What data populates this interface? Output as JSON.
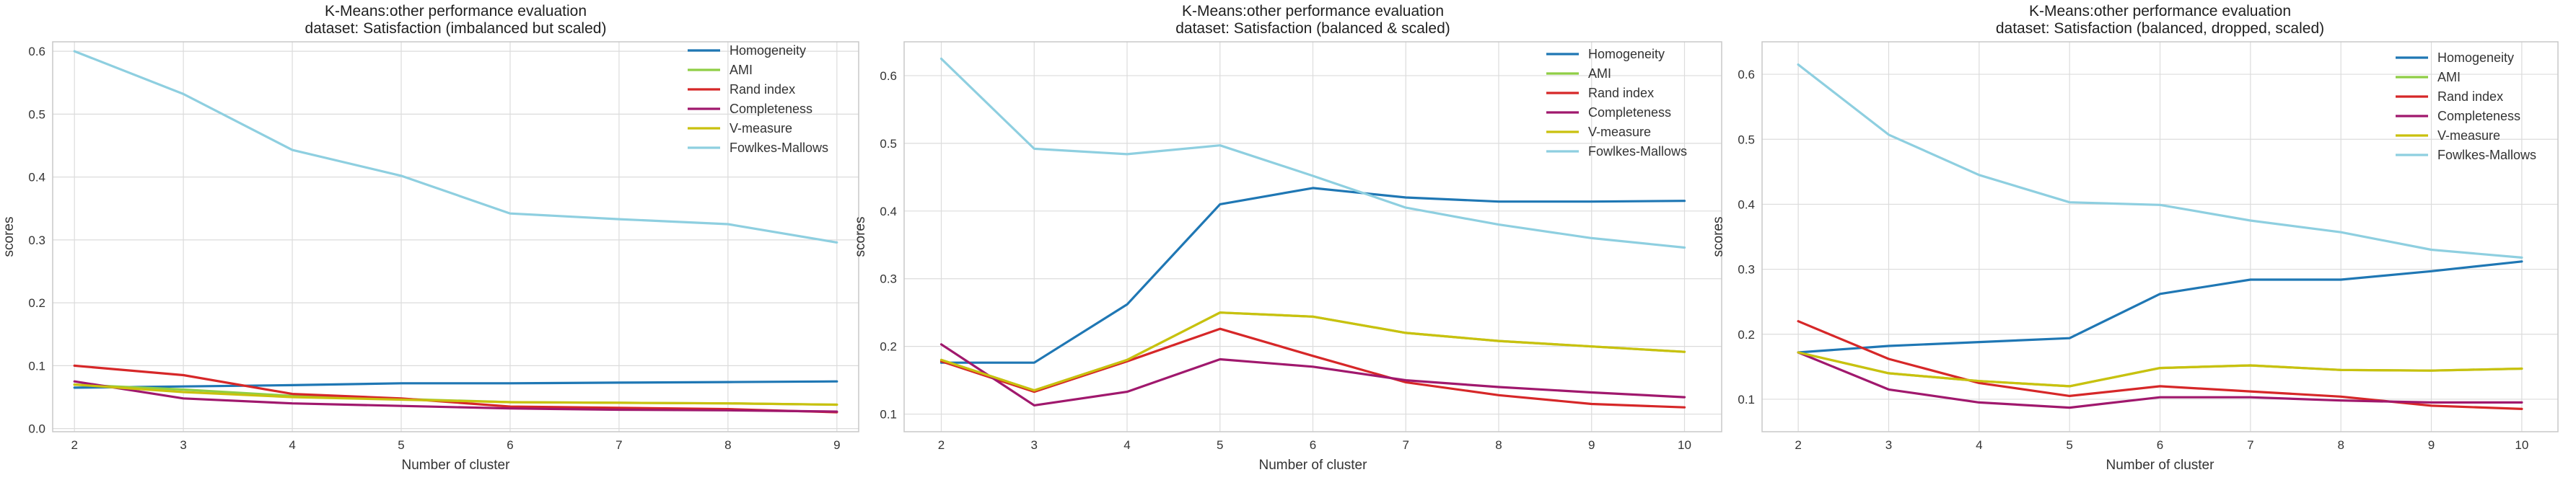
{
  "chart_data": [
    {
      "type": "line",
      "title": "K-Means:other performance evaluation",
      "subtitle": "dataset: Satisfaction (imbalanced but scaled)",
      "xlabel": "Number of cluster",
      "ylabel": "scores",
      "xlim": [
        1.8,
        9.2
      ],
      "ylim": [
        -0.005,
        0.615
      ],
      "x": [
        2,
        3,
        4,
        5,
        6,
        7,
        8,
        9
      ],
      "xticks": [
        "2",
        "3",
        "4",
        "5",
        "6",
        "7",
        "8",
        "9"
      ],
      "yticks": [
        "0.0",
        "0.1",
        "0.2",
        "0.3",
        "0.4",
        "0.5",
        "0.6"
      ],
      "ytick_values": [
        0.0,
        0.1,
        0.2,
        0.3,
        0.4,
        0.5,
        0.6
      ],
      "grid": true,
      "legend_position": "top-right",
      "series": [
        {
          "name": "Homogeneity",
          "color": "#1f77b4",
          "values": [
            0.065,
            0.067,
            0.069,
            0.072,
            0.072,
            0.073,
            0.074,
            0.075
          ]
        },
        {
          "name": "AMI",
          "color": "#8fce45",
          "values": [
            0.07,
            0.062,
            0.052,
            0.047,
            0.042,
            0.041,
            0.04,
            0.038
          ]
        },
        {
          "name": "Rand index",
          "color": "#d62728",
          "values": [
            0.1,
            0.085,
            0.055,
            0.048,
            0.035,
            0.033,
            0.031,
            0.026
          ]
        },
        {
          "name": "Completeness",
          "color": "#a0186d",
          "values": [
            0.075,
            0.048,
            0.04,
            0.036,
            0.032,
            0.03,
            0.029,
            0.027
          ]
        },
        {
          "name": "V-measure",
          "color": "#c9c10e",
          "values": [
            0.07,
            0.058,
            0.05,
            0.046,
            0.042,
            0.041,
            0.04,
            0.038
          ]
        },
        {
          "name": "Fowlkes-Mallows",
          "color": "#8ecfe0",
          "values": [
            0.6,
            0.532,
            0.443,
            0.402,
            0.342,
            0.333,
            0.325,
            0.296
          ]
        }
      ]
    },
    {
      "type": "line",
      "title": "K-Means:other performance evaluation",
      "subtitle": "dataset: Satisfaction (balanced & scaled)",
      "xlabel": "Number of cluster",
      "ylabel": "scores",
      "xlim": [
        1.6,
        10.4
      ],
      "ylim": [
        0.074,
        0.65
      ],
      "x": [
        2,
        3,
        4,
        5,
        6,
        7,
        8,
        9,
        10
      ],
      "xticks": [
        "2",
        "3",
        "4",
        "5",
        "6",
        "7",
        "8",
        "9",
        "10"
      ],
      "yticks": [
        "0.1",
        "0.2",
        "0.3",
        "0.4",
        "0.5",
        "0.6"
      ],
      "ytick_values": [
        0.1,
        0.2,
        0.3,
        0.4,
        0.5,
        0.6
      ],
      "grid": true,
      "legend_position": "top-right",
      "series": [
        {
          "name": "Homogeneity",
          "color": "#1f77b4",
          "values": [
            0.176,
            0.176,
            0.262,
            0.41,
            0.434,
            0.42,
            0.414,
            0.414,
            0.415
          ]
        },
        {
          "name": "AMI",
          "color": "#8fce45",
          "values": [
            0.18,
            0.135,
            0.18,
            0.25,
            0.244,
            0.22,
            0.208,
            0.2,
            0.192
          ]
        },
        {
          "name": "Rand index",
          "color": "#d62728",
          "values": [
            0.178,
            0.133,
            0.178,
            0.226,
            0.186,
            0.147,
            0.128,
            0.115,
            0.11
          ]
        },
        {
          "name": "Completeness",
          "color": "#a0186d",
          "values": [
            0.203,
            0.113,
            0.133,
            0.181,
            0.17,
            0.15,
            0.14,
            0.132,
            0.125
          ]
        },
        {
          "name": "V-measure",
          "color": "#c9c10e",
          "values": [
            0.18,
            0.135,
            0.18,
            0.25,
            0.244,
            0.22,
            0.208,
            0.2,
            0.192
          ]
        },
        {
          "name": "Fowlkes-Mallows",
          "color": "#8ecfe0",
          "values": [
            0.625,
            0.492,
            0.484,
            0.497,
            0.452,
            0.405,
            0.38,
            0.36,
            0.346
          ]
        }
      ]
    },
    {
      "type": "line",
      "title": "K-Means:other performance evaluation",
      "subtitle": "dataset: Satisfaction (balanced, dropped, scaled)",
      "xlabel": "Number of cluster",
      "ylabel": "scores",
      "xlim": [
        1.6,
        10.4
      ],
      "ylim": [
        0.05,
        0.65
      ],
      "x": [
        2,
        3,
        4,
        5,
        6,
        7,
        8,
        9,
        10
      ],
      "xticks": [
        "2",
        "3",
        "4",
        "5",
        "6",
        "7",
        "8",
        "9",
        "10"
      ],
      "yticks": [
        "0.1",
        "0.2",
        "0.3",
        "0.4",
        "0.5",
        "0.6"
      ],
      "ytick_values": [
        0.1,
        0.2,
        0.3,
        0.4,
        0.5,
        0.6
      ],
      "grid": true,
      "legend_position": "top-right",
      "series": [
        {
          "name": "Homogeneity",
          "color": "#1f77b4",
          "values": [
            0.172,
            0.182,
            0.188,
            0.194,
            0.262,
            0.284,
            0.284,
            0.297,
            0.312
          ]
        },
        {
          "name": "AMI",
          "color": "#8fce45",
          "values": [
            0.172,
            0.14,
            0.128,
            0.12,
            0.148,
            0.152,
            0.145,
            0.144,
            0.147
          ]
        },
        {
          "name": "Rand index",
          "color": "#d62728",
          "values": [
            0.22,
            0.162,
            0.125,
            0.105,
            0.12,
            0.112,
            0.104,
            0.09,
            0.085
          ]
        },
        {
          "name": "Completeness",
          "color": "#a0186d",
          "values": [
            0.172,
            0.115,
            0.095,
            0.087,
            0.103,
            0.103,
            0.098,
            0.095,
            0.095
          ]
        },
        {
          "name": "V-measure",
          "color": "#c9c10e",
          "values": [
            0.172,
            0.14,
            0.128,
            0.12,
            0.148,
            0.152,
            0.145,
            0.144,
            0.147
          ]
        },
        {
          "name": "Fowlkes-Mallows",
          "color": "#8ecfe0",
          "values": [
            0.615,
            0.507,
            0.445,
            0.403,
            0.399,
            0.375,
            0.357,
            0.33,
            0.318
          ]
        }
      ]
    }
  ]
}
